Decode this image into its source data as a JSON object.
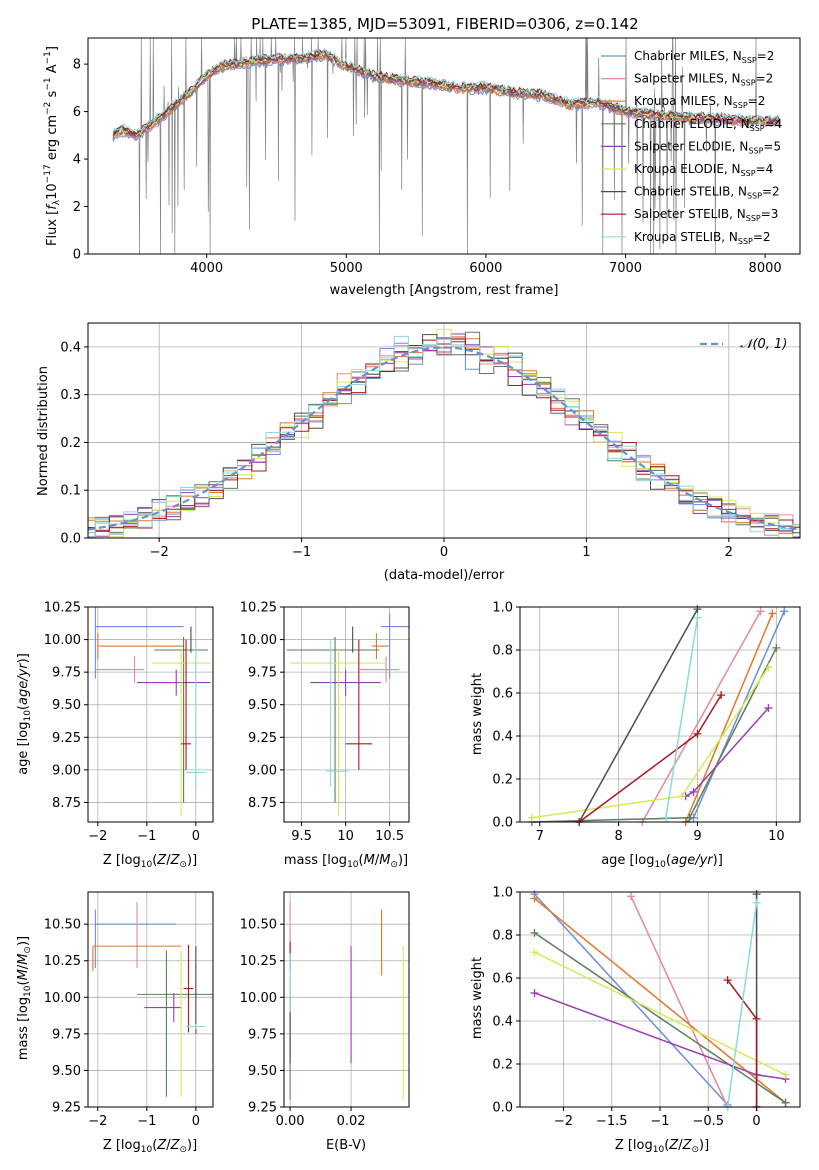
{
  "chart_data": [
    {
      "type": "line",
      "id": "spectrum",
      "title": "PLATE=1385, MJD=53091, FIBERID=0306, z=0.142",
      "xlabel": "wavelength [Angstrom, rest frame]",
      "ylabel": "Flux [f_λ 10^-17 erg cm^-2 s^-1 A^-1]",
      "xlim": [
        3150,
        8250
      ],
      "ylim": [
        0,
        9.1
      ],
      "xticks": [
        4000,
        5000,
        6000,
        7000,
        8000
      ],
      "yticks": [
        0,
        2,
        4,
        6,
        8
      ],
      "grid": false,
      "legend_position": "top-right",
      "data_color": "#808080",
      "models": [
        {
          "name": "Chabrier MILES, N",
          "ssp": "=2",
          "color": "#6a8fd6"
        },
        {
          "name": "Salpeter MILES, N",
          "ssp": "=2",
          "color": "#e8879d"
        },
        {
          "name": "Kroupa MILES, N",
          "ssp": "=2",
          "color": "#e0782b"
        },
        {
          "name": "Chabrier ELODIE, N",
          "ssp": "=4",
          "color": "#5e7d5b"
        },
        {
          "name": "Salpeter ELODIE, N",
          "ssp": "=5",
          "color": "#9a3fb0"
        },
        {
          "name": "Kroupa ELODIE, N",
          "ssp": "=4",
          "color": "#d6e85a"
        },
        {
          "name": "Chabrier STELIB, N",
          "ssp": "=2",
          "color": "#4d4d4d"
        },
        {
          "name": "Salpeter STELIB, N",
          "ssp": "=3",
          "color": "#a8191f"
        },
        {
          "name": "Kroupa STELIB, N",
          "ssp": "=2",
          "color": "#8adcd8"
        }
      ],
      "continuum": [
        [
          3330,
          5.0
        ],
        [
          3400,
          5.2
        ],
        [
          3500,
          5.0
        ],
        [
          3600,
          5.4
        ],
        [
          3700,
          5.9
        ],
        [
          3800,
          6.4
        ],
        [
          3900,
          6.9
        ],
        [
          4000,
          7.5
        ],
        [
          4100,
          7.9
        ],
        [
          4300,
          8.1
        ],
        [
          4500,
          8.2
        ],
        [
          4700,
          8.25
        ],
        [
          4850,
          8.4
        ],
        [
          5000,
          7.9
        ],
        [
          5200,
          7.5
        ],
        [
          5400,
          7.3
        ],
        [
          5600,
          7.2
        ],
        [
          5800,
          7.0
        ],
        [
          6000,
          7.0
        ],
        [
          6200,
          6.8
        ],
        [
          6400,
          6.7
        ],
        [
          6600,
          6.3
        ],
        [
          6800,
          6.4
        ],
        [
          7000,
          6.0
        ],
        [
          7300,
          5.8
        ],
        [
          7600,
          5.7
        ],
        [
          7900,
          5.6
        ],
        [
          8100,
          5.6
        ]
      ]
    },
    {
      "type": "histogram",
      "id": "residuals",
      "xlabel": "(data-model)/error",
      "ylabel": "Normed distribution",
      "xlim": [
        -2.5,
        2.5
      ],
      "ylim": [
        0,
        0.45
      ],
      "xticks": [
        -2,
        -1,
        0,
        1,
        2
      ],
      "yticks": [
        0.0,
        0.1,
        0.2,
        0.3,
        0.4
      ],
      "grid": true,
      "legend_position": "top-right",
      "reference_label": "𝒩(0, 1)",
      "reference_color": "#6a8fd6",
      "bin_width": 0.1
    },
    {
      "type": "errorbar",
      "id": "age-vs-Z",
      "xlabel": "Z [log10(Z/Z⊙)]",
      "ylabel": "age  [log10(age/yr)]",
      "xlim": [
        -2.2,
        0.35
      ],
      "ylim": [
        8.6,
        10.25
      ],
      "xticks": [
        -2,
        -1,
        0
      ],
      "yticks": [
        8.75,
        9.0,
        9.25,
        9.5,
        9.75,
        10.0,
        10.25
      ],
      "grid": true
    },
    {
      "type": "errorbar",
      "id": "age-vs-mass",
      "xlabel": "mass [log10(M/M⊙)]",
      "xlim": [
        9.3,
        10.72
      ],
      "ylim": [
        8.6,
        10.25
      ],
      "xticks": [
        9.5,
        10.0,
        10.5
      ],
      "yticks": [
        8.75,
        9.0,
        9.25,
        9.5,
        9.75,
        10.0,
        10.25
      ],
      "grid": true
    },
    {
      "type": "line",
      "id": "weight-vs-age",
      "xlabel": "age  [log10(age/yr)]",
      "ylabel": "mass weight",
      "xlim": [
        6.75,
        10.3
      ],
      "ylim": [
        0,
        1.0
      ],
      "xticks": [
        7,
        8,
        9,
        10
      ],
      "yticks": [
        0.0,
        0.2,
        0.4,
        0.6,
        0.8,
        1.0
      ],
      "grid": true,
      "series": [
        {
          "color": "#6a8fd6",
          "points": [
            [
              8.85,
              0.0
            ],
            [
              8.95,
              0.02
            ],
            [
              10.1,
              0.98
            ]
          ]
        },
        {
          "color": "#e8879d",
          "points": [
            [
              8.3,
              0.0
            ],
            [
              9.8,
              0.98
            ]
          ]
        },
        {
          "color": "#e0782b",
          "points": [
            [
              8.85,
              0.0
            ],
            [
              9.95,
              0.97
            ]
          ]
        },
        {
          "color": "#5e7d5b",
          "points": [
            [
              6.9,
              0.0
            ],
            [
              8.9,
              0.02
            ],
            [
              10.0,
              0.81
            ]
          ]
        },
        {
          "color": "#9a3fb0",
          "points": [
            [
              8.85,
              0.12
            ],
            [
              8.95,
              0.14
            ],
            [
              9.9,
              0.53
            ]
          ]
        },
        {
          "color": "#d6e85a",
          "points": [
            [
              6.9,
              0.02
            ],
            [
              8.8,
              0.12
            ],
            [
              9.9,
              0.72
            ]
          ]
        },
        {
          "color": "#4d4d4d",
          "points": [
            [
              7.5,
              0.0
            ],
            [
              9.0,
              0.99
            ]
          ]
        },
        {
          "color": "#a8191f",
          "points": [
            [
              7.5,
              0.0
            ],
            [
              9.0,
              0.41
            ],
            [
              9.3,
              0.59
            ]
          ]
        },
        {
          "color": "#8adcd8",
          "points": [
            [
              8.6,
              0.02
            ],
            [
              9.0,
              0.95
            ]
          ]
        }
      ]
    },
    {
      "type": "errorbar",
      "id": "mass-vs-Z",
      "xlabel": "Z [log10(Z/Z⊙)]",
      "ylabel": "mass [log10(M/M⊙)]",
      "xlim": [
        -2.2,
        0.35
      ],
      "ylim": [
        9.25,
        10.72
      ],
      "xticks": [
        -2,
        -1,
        0
      ],
      "yticks": [
        9.25,
        9.5,
        9.75,
        10.0,
        10.25,
        10.5
      ],
      "grid": true
    },
    {
      "type": "errorbar",
      "id": "mass-vs-ebv",
      "xlabel": "E(B-V)",
      "xlim": [
        -0.002,
        0.039
      ],
      "ylim": [
        9.25,
        10.72
      ],
      "xticks": [
        0.0,
        0.02
      ],
      "xtick_labels": [
        "0.00",
        "0.02"
      ],
      "yticks": [
        9.25,
        9.5,
        9.75,
        10.0,
        10.25,
        10.5
      ],
      "grid": true
    },
    {
      "type": "line",
      "id": "weight-vs-Z",
      "xlabel": "Z [log10(Z/Z⊙)]",
      "ylabel": "mass weight",
      "xlim": [
        -2.45,
        0.45
      ],
      "ylim": [
        0,
        1.0
      ],
      "xticks": [
        -2.0,
        -1.5,
        -1.0,
        -0.5,
        0.0
      ],
      "yticks": [
        0.0,
        0.2,
        0.4,
        0.6,
        0.8,
        1.0
      ],
      "grid": true,
      "series": [
        {
          "color": "#6a8fd6",
          "points": [
            [
              -2.3,
              0.99
            ],
            [
              -0.3,
              0.01
            ]
          ]
        },
        {
          "color": "#e8879d",
          "points": [
            [
              -1.3,
              0.98
            ],
            [
              -0.3,
              0.0
            ]
          ]
        },
        {
          "color": "#e0782b",
          "points": [
            [
              -2.3,
              0.97
            ],
            [
              0.3,
              0.02
            ]
          ]
        },
        {
          "color": "#5e7d5b",
          "points": [
            [
              -2.3,
              0.81
            ],
            [
              0.3,
              0.02
            ]
          ]
        },
        {
          "color": "#9a3fb0",
          "points": [
            [
              -2.3,
              0.53
            ],
            [
              0.0,
              0.15
            ],
            [
              0.3,
              0.13
            ]
          ]
        },
        {
          "color": "#d6e85a",
          "points": [
            [
              -2.3,
              0.72
            ],
            [
              0.3,
              0.15
            ]
          ]
        },
        {
          "color": "#4d4d4d",
          "points": [
            [
              0.0,
              0.0
            ],
            [
              0.0,
              0.99
            ]
          ]
        },
        {
          "color": "#a8191f",
          "points": [
            [
              -0.3,
              0.59
            ],
            [
              0.0,
              0.41
            ],
            [
              0.0,
              0.0
            ]
          ]
        },
        {
          "color": "#8adcd8",
          "points": [
            [
              -0.3,
              0.0
            ],
            [
              0.0,
              0.95
            ]
          ]
        }
      ]
    }
  ]
}
